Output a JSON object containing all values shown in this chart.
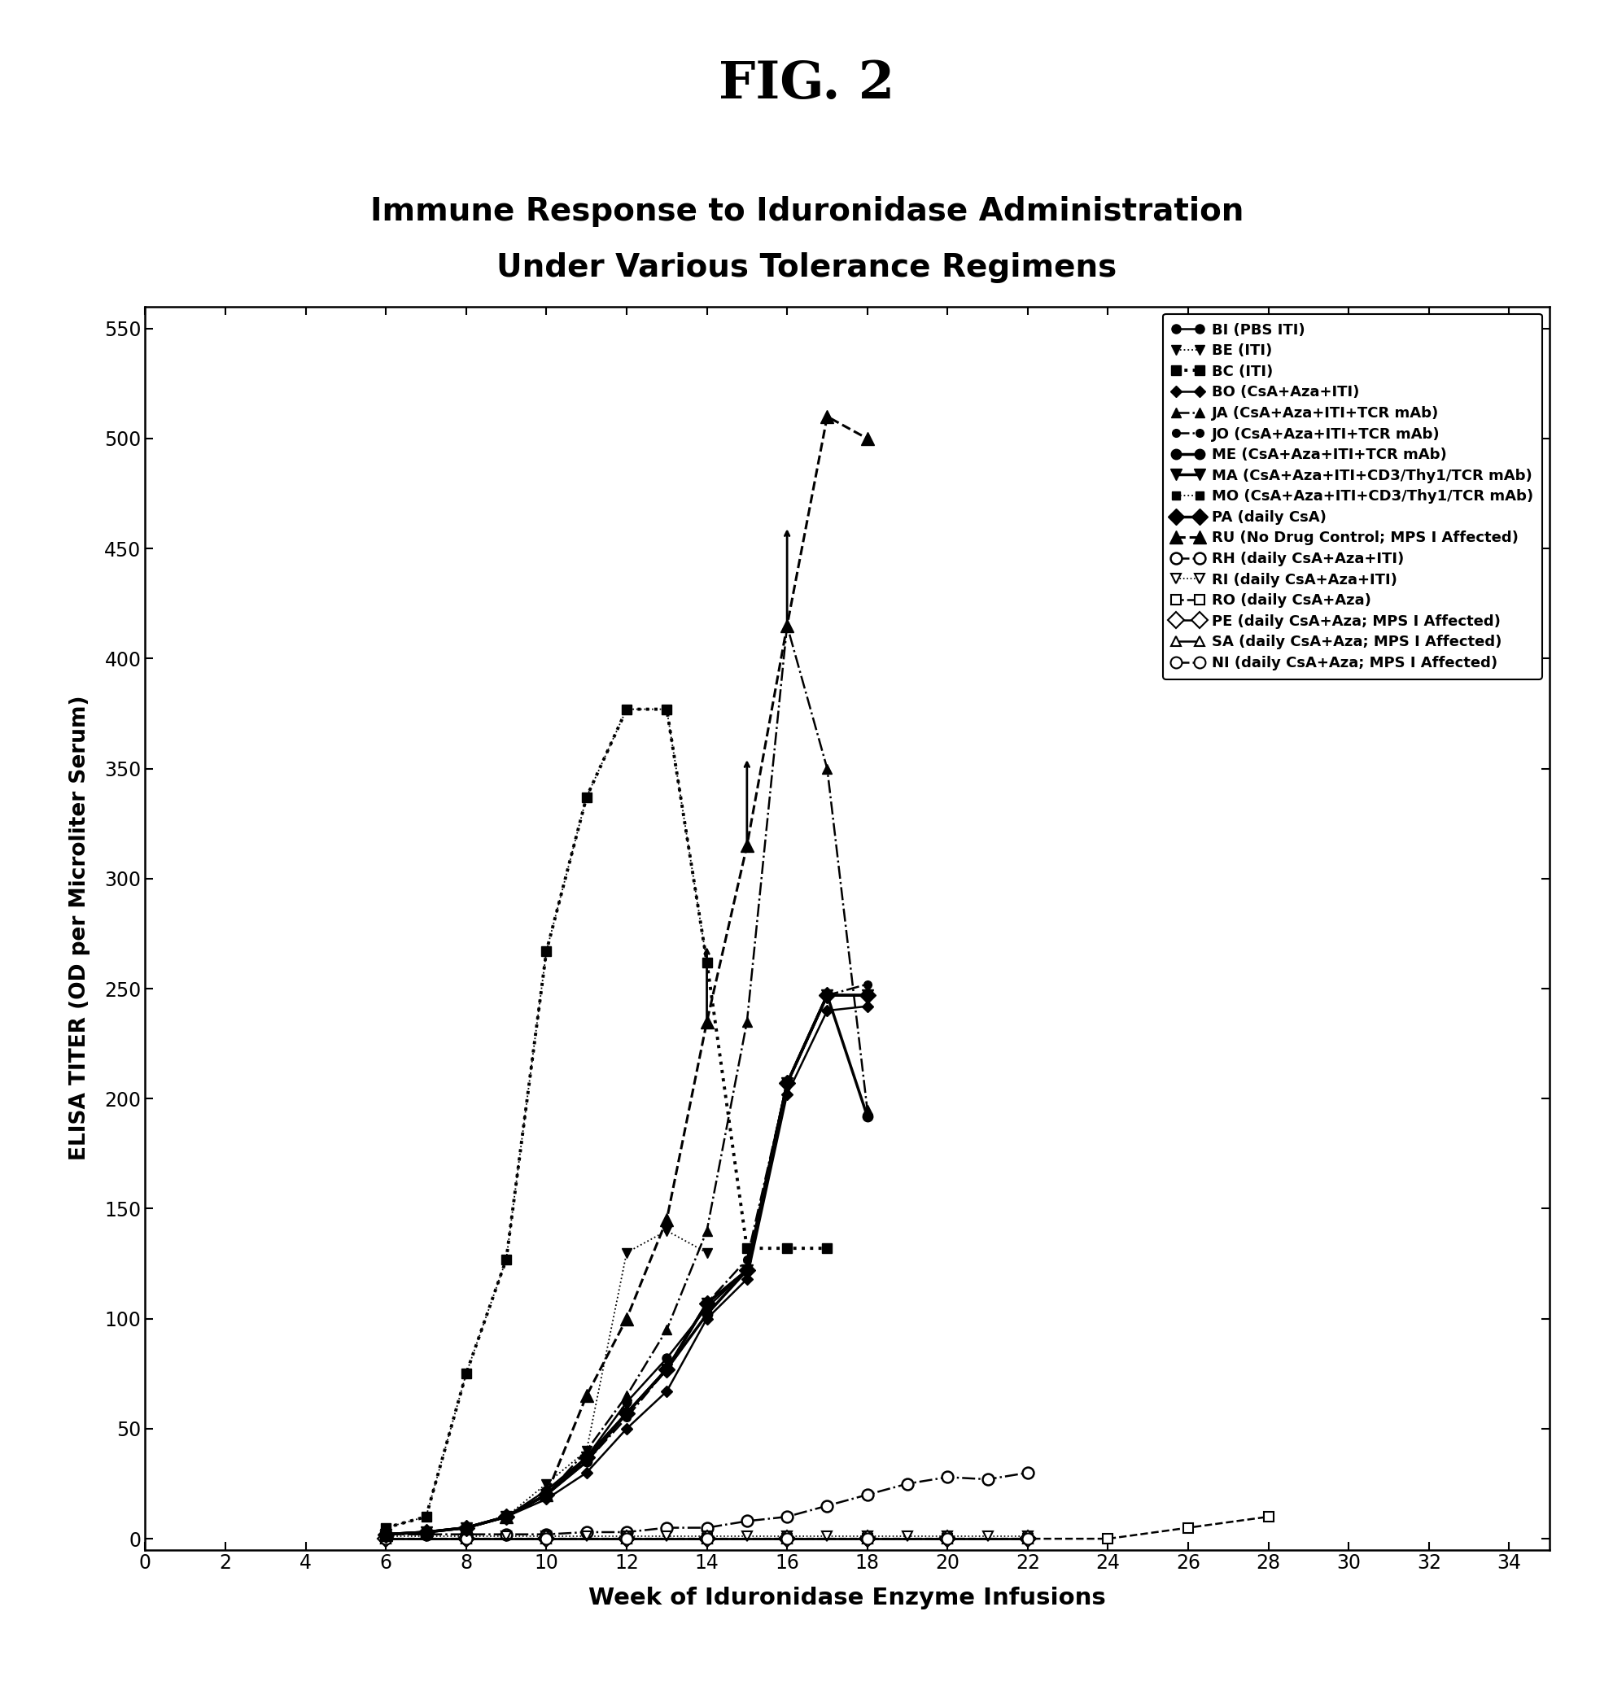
{
  "fig_title": "FIG. 2",
  "chart_title_line1": "Immune Response to Iduronidase Administration",
  "chart_title_line2": "Under Various Tolerance Regimens",
  "xlabel": "Week of Iduronidase Enzyme Infusions",
  "ylabel": "ELISA TITER (OD per Microliter Serum)",
  "xlim": [
    0,
    35
  ],
  "ylim": [
    -5,
    560
  ],
  "xticks": [
    0,
    2,
    4,
    6,
    8,
    10,
    12,
    14,
    16,
    18,
    20,
    22,
    24,
    26,
    28,
    30,
    32,
    34
  ],
  "yticks": [
    0,
    50,
    100,
    150,
    200,
    250,
    300,
    350,
    400,
    450,
    500,
    550
  ],
  "BI_x": [
    6,
    7,
    8,
    9,
    10,
    11,
    12,
    13,
    14,
    15,
    16,
    17,
    18
  ],
  "BI_y": [
    2,
    3,
    5,
    10,
    22,
    37,
    62,
    82,
    105,
    122,
    207,
    247,
    247
  ],
  "BE_x": [
    6,
    7,
    8,
    9,
    10,
    11,
    12,
    13,
    14
  ],
  "BE_y": [
    2,
    3,
    5,
    10,
    25,
    40,
    130,
    140,
    130
  ],
  "BC_x": [
    6,
    7,
    8,
    9,
    10,
    11,
    12,
    13,
    14,
    15,
    16,
    17
  ],
  "BC_y": [
    5,
    10,
    75,
    127,
    267,
    337,
    377,
    377,
    262,
    132,
    132,
    132
  ],
  "BO_x": [
    6,
    7,
    8,
    9,
    10,
    11,
    12,
    13,
    14,
    15,
    16,
    17,
    18
  ],
  "BO_y": [
    2,
    3,
    5,
    10,
    18,
    30,
    50,
    67,
    100,
    118,
    202,
    240,
    242
  ],
  "JA_x": [
    6,
    7,
    8,
    9,
    10,
    11,
    12,
    13,
    14,
    15,
    16,
    17,
    18
  ],
  "JA_y": [
    2,
    3,
    5,
    10,
    20,
    40,
    65,
    95,
    140,
    235,
    415,
    350,
    195
  ],
  "JO_x": [
    6,
    7,
    8,
    9,
    10,
    11,
    12,
    13,
    14,
    15,
    16,
    17,
    18
  ],
  "JO_y": [
    2,
    3,
    5,
    10,
    20,
    35,
    55,
    77,
    107,
    127,
    207,
    247,
    252
  ],
  "ME_x": [
    6,
    7,
    8,
    9,
    10,
    11,
    12,
    13,
    14,
    15,
    16,
    17,
    18
  ],
  "ME_y": [
    2,
    3,
    5,
    10,
    20,
    35,
    57,
    77,
    102,
    122,
    207,
    247,
    192
  ],
  "MA_x": [
    6,
    7,
    8,
    9,
    10,
    11,
    12,
    13,
    14,
    15,
    16,
    17,
    18
  ],
  "MA_y": [
    2,
    3,
    5,
    10,
    20,
    37,
    57,
    77,
    107,
    122,
    207,
    247,
    247
  ],
  "MO_x": [
    6,
    7,
    8,
    9,
    10,
    11,
    12,
    13,
    14
  ],
  "MO_y": [
    5,
    10,
    75,
    127,
    267,
    337,
    377,
    377,
    262
  ],
  "PA_x": [
    6,
    7,
    8,
    9,
    10,
    11,
    12,
    13,
    14,
    15,
    16,
    17,
    18
  ],
  "PA_y": [
    2,
    3,
    5,
    10,
    20,
    37,
    57,
    77,
    107,
    122,
    207,
    247,
    247
  ],
  "RU_x": [
    6,
    7,
    8,
    9,
    10,
    11,
    12,
    13,
    14,
    15,
    16,
    17,
    18
  ],
  "RU_y": [
    2,
    3,
    5,
    10,
    20,
    65,
    100,
    145,
    235,
    315,
    415,
    510,
    500
  ],
  "RH_x": [
    6,
    7,
    8,
    9,
    10,
    11,
    12,
    13,
    14,
    15,
    16,
    17,
    18,
    19,
    20,
    21,
    22
  ],
  "RH_y": [
    2,
    2,
    2,
    2,
    2,
    3,
    3,
    5,
    5,
    8,
    10,
    15,
    20,
    25,
    28,
    27,
    30
  ],
  "RI_x": [
    6,
    7,
    8,
    9,
    10,
    11,
    12,
    13,
    14,
    15,
    16,
    17,
    18,
    19,
    20,
    21,
    22
  ],
  "RI_y": [
    1,
    1,
    1,
    1,
    1,
    1,
    1,
    1,
    1,
    1,
    1,
    1,
    1,
    1,
    1,
    1,
    1
  ],
  "RO_x": [
    6,
    8,
    10,
    12,
    14,
    16,
    18,
    20,
    22,
    24,
    26,
    28
  ],
  "RO_y": [
    0,
    0,
    0,
    0,
    0,
    0,
    0,
    0,
    0,
    0,
    5,
    10
  ],
  "PE_x": [
    6,
    8,
    10,
    12,
    14,
    16,
    18,
    20,
    22
  ],
  "PE_y": [
    0,
    0,
    0,
    0,
    0,
    0,
    0,
    0,
    0
  ],
  "SA_x": [
    6,
    8,
    10,
    12,
    14,
    16,
    18,
    20,
    22
  ],
  "SA_y": [
    0,
    0,
    0,
    0,
    0,
    0,
    0,
    0,
    0
  ],
  "NI_x": [
    6,
    8,
    10,
    12,
    14,
    16,
    18,
    20,
    22
  ],
  "NI_y": [
    0,
    0,
    0,
    0,
    0,
    0,
    0,
    0,
    0
  ],
  "arrow_weeks": [
    14,
    15,
    16
  ],
  "arrow_starts": [
    235,
    315,
    415
  ],
  "arrow_ends": [
    270,
    355,
    460
  ]
}
